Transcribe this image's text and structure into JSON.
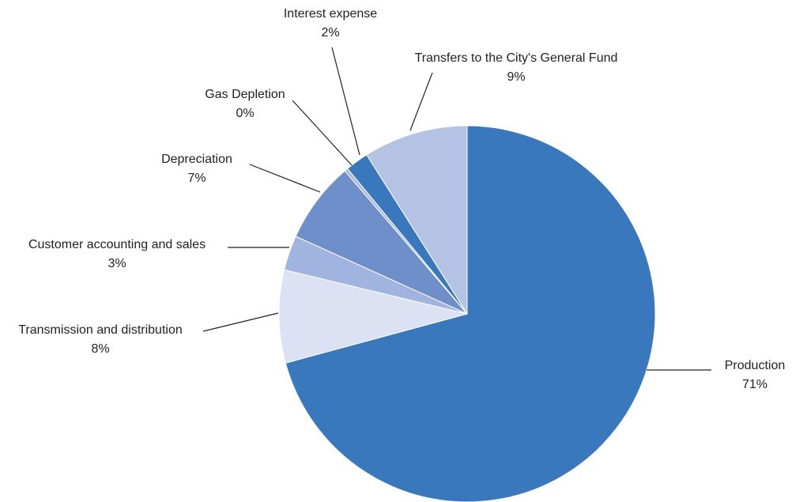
{
  "chart_data": {
    "type": "pie",
    "categories": [
      "Production",
      "Transmission and distribution",
      "Customer accounting and sales",
      "Depreciation",
      "Gas Depletion",
      "Interest expense",
      "Transfers to the City's General Fund"
    ],
    "values": [
      71,
      8,
      3,
      7,
      0.3,
      2,
      9
    ],
    "value_labels": [
      "71%",
      "8%",
      "3%",
      "7%",
      "0%",
      "2%",
      "9%"
    ],
    "colors": [
      "#3a78bd",
      "#dce1f3",
      "#a1b3df",
      "#6f8fca",
      "#a9b9de",
      "#3a78bd",
      "#b4c3e4"
    ]
  }
}
